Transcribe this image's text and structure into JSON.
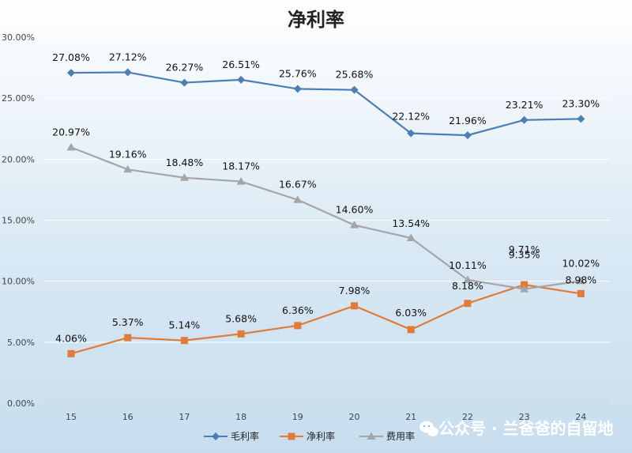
{
  "chart_data": {
    "type": "line",
    "title": "净利率",
    "categories": [
      "15",
      "16",
      "17",
      "18",
      "19",
      "20",
      "21",
      "22",
      "23",
      "24"
    ],
    "ylim": [
      0,
      30
    ],
    "yticks": [
      "0.00%",
      "5.00%",
      "10.00%",
      "15.00%",
      "20.00%",
      "25.00%",
      "30.00%"
    ],
    "ytick_values": [
      0,
      5,
      10,
      15,
      20,
      25,
      30
    ],
    "grid": true,
    "legend": "bottom",
    "series": [
      {
        "name": "毛利率",
        "color": "#4a7eb4",
        "marker": "diamond",
        "values": [
          27.08,
          27.12,
          26.27,
          26.51,
          25.76,
          25.68,
          22.12,
          21.96,
          23.21,
          23.3
        ],
        "labels": [
          "27.08%",
          "27.12%",
          "26.27%",
          "26.51%",
          "25.76%",
          "25.68%",
          "22.12%",
          "21.96%",
          "23.21%",
          "23.30%"
        ]
      },
      {
        "name": "净利率",
        "color": "#e07b39",
        "marker": "square",
        "values": [
          4.06,
          5.37,
          5.14,
          5.68,
          6.36,
          7.98,
          6.03,
          8.18,
          9.71,
          8.98
        ],
        "labels": [
          "4.06%",
          "5.37%",
          "5.14%",
          "5.68%",
          "6.36%",
          "7.98%",
          "6.03%",
          "8.18%",
          "9.71%",
          "8.98%"
        ]
      },
      {
        "name": "费用率",
        "color": "#a5a5a5",
        "marker": "triangle",
        "values": [
          20.97,
          19.16,
          18.48,
          18.17,
          16.67,
          14.6,
          13.54,
          10.11,
          9.35,
          10.02
        ],
        "labels": [
          "20.97%",
          "19.16%",
          "18.48%",
          "18.17%",
          "16.67%",
          "14.60%",
          "13.54%",
          "10.11%",
          "9.35%",
          "10.02%"
        ]
      }
    ]
  },
  "watermark": {
    "text": "公众号 · 兰爸爸的自留地",
    "icon": "wechat-icon"
  }
}
